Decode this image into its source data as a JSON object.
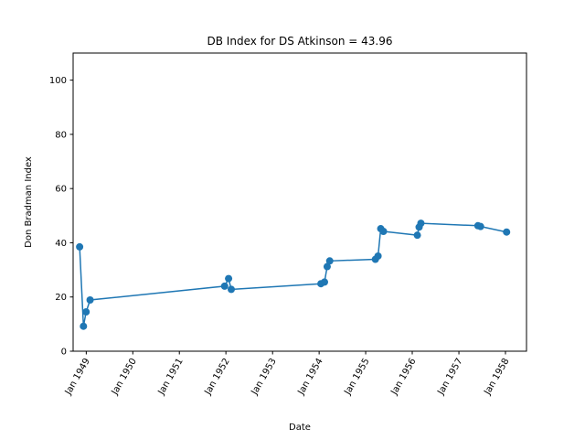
{
  "chart_data": {
    "type": "line",
    "title": "DB Index for DS Atkinson = 43.96",
    "xlabel": "Date",
    "ylabel": "Don Bradman Index",
    "xlim": [
      "1948-09-20",
      "1958-06-15"
    ],
    "ylim": [
      0,
      110
    ],
    "yticks": [
      0,
      20,
      40,
      60,
      80,
      100
    ],
    "xticks": [
      "1949-01-01",
      "1950-01-01",
      "1951-01-01",
      "1952-01-01",
      "1953-01-01",
      "1954-01-01",
      "1955-01-01",
      "1956-01-01",
      "1957-01-01",
      "1958-01-01"
    ],
    "xtick_labels": [
      "Jan 1949",
      "Jan 1950",
      "Jan 1951",
      "Jan 1952",
      "Jan 1953",
      "Jan 1954",
      "Jan 1955",
      "Jan 1956",
      "Jan 1957",
      "Jan 1958"
    ],
    "grid": false,
    "color": "#1f77b4",
    "series": [
      {
        "x": [
          "1948-11-10",
          "1948-12-10",
          "1948-12-31",
          "1949-01-31",
          "1951-12-22",
          "1952-01-22",
          "1952-02-12",
          "1954-01-15",
          "1954-02-12",
          "1954-03-05",
          "1954-03-25",
          "1955-03-18",
          "1955-04-08",
          "1955-04-29",
          "1955-05-20",
          "1956-02-10",
          "1956-02-24",
          "1956-03-09",
          "1957-05-30",
          "1957-06-20",
          "1958-01-10"
        ],
        "y": [
          38.5,
          9.2,
          14.5,
          18.9,
          24.0,
          26.8,
          22.8,
          24.9,
          25.5,
          31.2,
          33.3,
          33.9,
          35.1,
          45.2,
          44.2,
          42.8,
          45.8,
          47.2,
          46.3,
          46.0,
          43.96
        ]
      }
    ]
  }
}
